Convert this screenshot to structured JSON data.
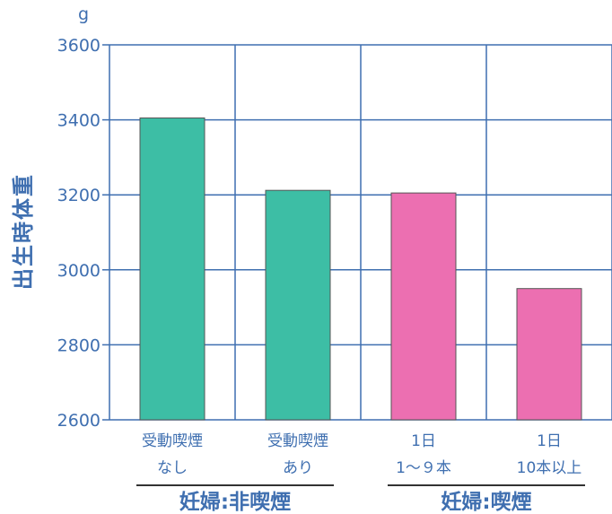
{
  "chart_data": {
    "type": "bar",
    "unit": "g",
    "ylabel": "出生時体重",
    "ylim": [
      2600,
      3600
    ],
    "yticks": [
      2600,
      2800,
      3000,
      3200,
      3400,
      3600
    ],
    "grid": true,
    "categories": [
      {
        "line1": "受動喫煙",
        "line2": "なし",
        "value": 3405,
        "color": "#3dbea5"
      },
      {
        "line1": "受動喫煙",
        "line2": "あり",
        "value": 3212,
        "color": "#3dbea5"
      },
      {
        "line1": "1日",
        "line2": "1～９本",
        "value": 3205,
        "color": "#ec6fb1"
      },
      {
        "line1": "1日",
        "line2": "10本以上",
        "value": 2950,
        "color": "#ec6fb1"
      }
    ],
    "groups": [
      {
        "label": "妊婦:非喫煙",
        "span": [
          0,
          1
        ]
      },
      {
        "label": "妊婦:喫煙",
        "span": [
          2,
          3
        ]
      }
    ],
    "colors": {
      "grid": "#3f6fb0",
      "text": "#3f6fb0"
    }
  }
}
